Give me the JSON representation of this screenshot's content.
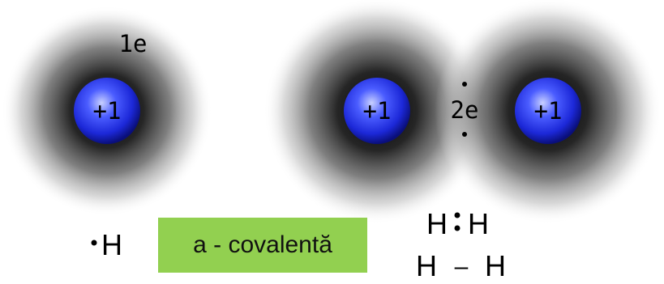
{
  "atom": {
    "electron_label": "1e",
    "nucleus_charge": "+1"
  },
  "molecule": {
    "shared_electrons_label": "2e",
    "nucleus_left_charge": "+1",
    "nucleus_right_charge": "+1"
  },
  "formulas": {
    "atom_symbol": "H",
    "lewis_left": "H",
    "lewis_right": "H",
    "structural_left": "H",
    "structural_bond": "–",
    "structural_right": "H"
  },
  "bond_label": "a - covalentă",
  "colors": {
    "nucleus_light": "#aab8ff",
    "nucleus_mid": "#2a3cff",
    "nucleus_dark": "#0a0f7a",
    "cloud_center": "#000000",
    "label_box": "#92d050"
  }
}
